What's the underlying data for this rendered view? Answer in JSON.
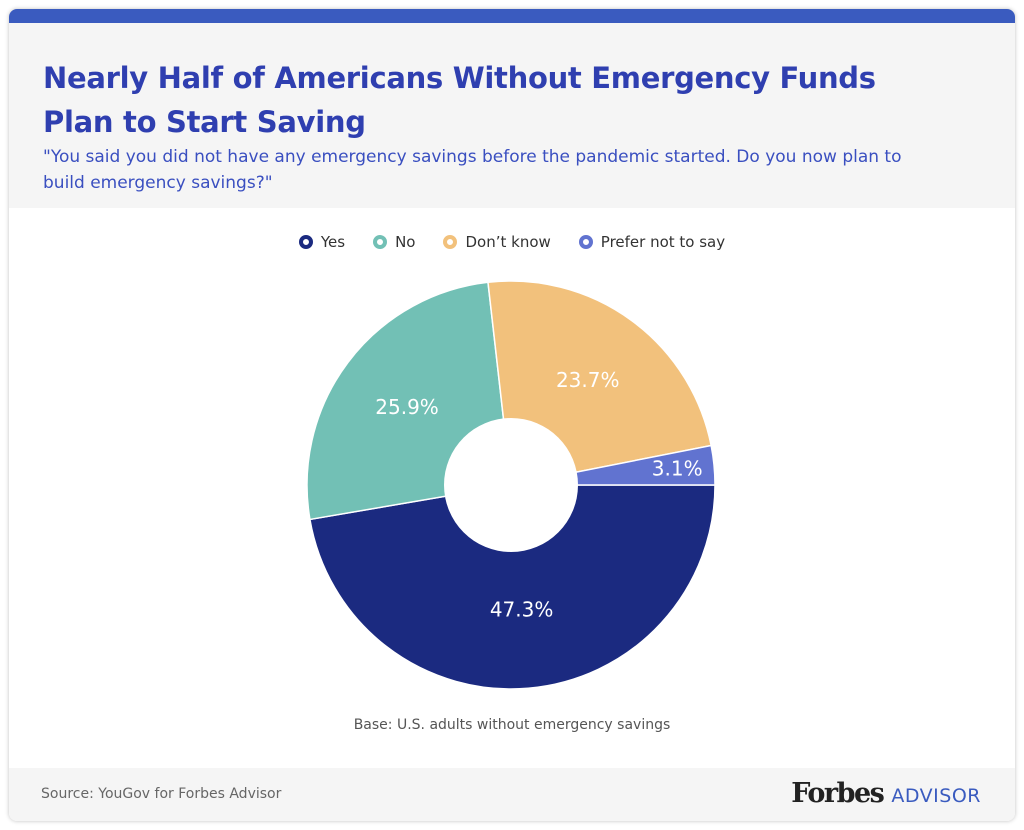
{
  "header": {
    "title": "Nearly Half of Americans Without Emergency Funds Plan to Start Saving",
    "subtitle": "\"You said you did not have any emergency savings before the pandemic started. Do you now plan to build emergency savings?\""
  },
  "chart_data": {
    "type": "pie",
    "donut": true,
    "legend_position": "top",
    "categories": [
      "Yes",
      "No",
      "Don’t know",
      "Prefer not to say"
    ],
    "values": [
      47.3,
      25.9,
      23.7,
      3.1
    ],
    "labels": [
      "47.3%",
      "25.9%",
      "23.7%",
      "3.1%"
    ],
    "colors": [
      "#1b2a80",
      "#72c0b5",
      "#f2c17c",
      "#6173d0"
    ]
  },
  "base_note": "Base: U.S. adults without emergency savings",
  "footer": {
    "source": "Source: YouGov for Forbes Advisor",
    "logo_main": "Forbes",
    "logo_sub": "ADVISOR"
  }
}
